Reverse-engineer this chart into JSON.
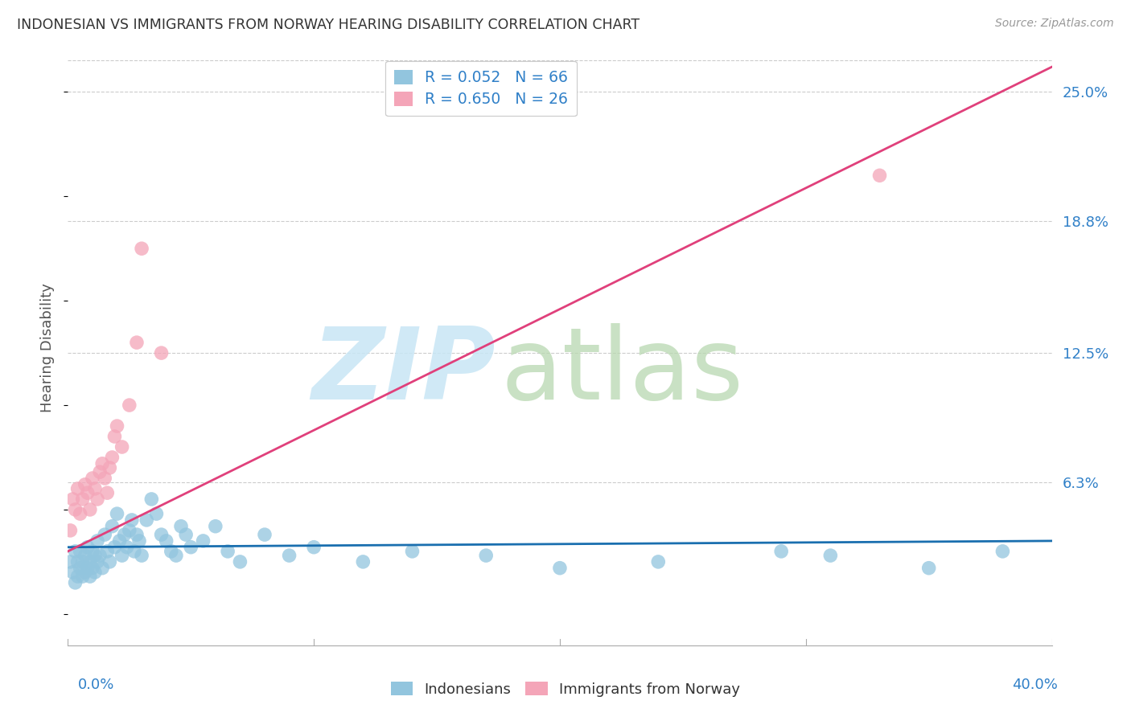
{
  "title": "INDONESIAN VS IMMIGRANTS FROM NORWAY HEARING DISABILITY CORRELATION CHART",
  "source": "Source: ZipAtlas.com",
  "ylabel": "Hearing Disability",
  "ytick_values": [
    0.063,
    0.125,
    0.188,
    0.25
  ],
  "ytick_labels": [
    "6.3%",
    "12.5%",
    "18.8%",
    "25.0%"
  ],
  "xmin": 0.0,
  "xmax": 0.4,
  "ymin": -0.015,
  "ymax": 0.27,
  "legend1_label": "R = 0.052   N = 66",
  "legend2_label": "R = 0.650   N = 26",
  "legend_bottom_label1": "Indonesians",
  "legend_bottom_label2": "Immigrants from Norway",
  "indonesian_color": "#92c5de",
  "norway_color": "#f4a5b8",
  "indonesian_line_color": "#1a6faf",
  "norway_line_color": "#e0407b",
  "indonesian_scatter_x": [
    0.001,
    0.002,
    0.003,
    0.003,
    0.004,
    0.004,
    0.005,
    0.005,
    0.006,
    0.006,
    0.007,
    0.007,
    0.008,
    0.008,
    0.009,
    0.009,
    0.01,
    0.01,
    0.011,
    0.011,
    0.012,
    0.012,
    0.013,
    0.014,
    0.015,
    0.016,
    0.017,
    0.018,
    0.019,
    0.02,
    0.021,
    0.022,
    0.023,
    0.024,
    0.025,
    0.026,
    0.027,
    0.028,
    0.029,
    0.03,
    0.032,
    0.034,
    0.036,
    0.038,
    0.04,
    0.042,
    0.044,
    0.046,
    0.048,
    0.05,
    0.055,
    0.06,
    0.065,
    0.07,
    0.08,
    0.09,
    0.1,
    0.12,
    0.14,
    0.17,
    0.2,
    0.24,
    0.29,
    0.31,
    0.35,
    0.38
  ],
  "indonesian_scatter_y": [
    0.025,
    0.02,
    0.015,
    0.03,
    0.018,
    0.025,
    0.022,
    0.03,
    0.018,
    0.025,
    0.02,
    0.028,
    0.022,
    0.032,
    0.025,
    0.018,
    0.03,
    0.022,
    0.028,
    0.02,
    0.025,
    0.035,
    0.028,
    0.022,
    0.038,
    0.03,
    0.025,
    0.042,
    0.032,
    0.048,
    0.035,
    0.028,
    0.038,
    0.032,
    0.04,
    0.045,
    0.03,
    0.038,
    0.035,
    0.028,
    0.045,
    0.055,
    0.048,
    0.038,
    0.035,
    0.03,
    0.028,
    0.042,
    0.038,
    0.032,
    0.035,
    0.042,
    0.03,
    0.025,
    0.038,
    0.028,
    0.032,
    0.025,
    0.03,
    0.028,
    0.022,
    0.025,
    0.03,
    0.028,
    0.022,
    0.03
  ],
  "norway_scatter_x": [
    0.001,
    0.002,
    0.003,
    0.004,
    0.005,
    0.006,
    0.007,
    0.008,
    0.009,
    0.01,
    0.011,
    0.012,
    0.013,
    0.014,
    0.015,
    0.016,
    0.017,
    0.018,
    0.019,
    0.02,
    0.022,
    0.025,
    0.028,
    0.03,
    0.33,
    0.038
  ],
  "norway_scatter_y": [
    0.04,
    0.055,
    0.05,
    0.06,
    0.048,
    0.055,
    0.062,
    0.058,
    0.05,
    0.065,
    0.06,
    0.055,
    0.068,
    0.072,
    0.065,
    0.058,
    0.07,
    0.075,
    0.085,
    0.09,
    0.08,
    0.1,
    0.13,
    0.175,
    0.21,
    0.125
  ],
  "norway_line_x0": 0.0,
  "norway_line_y0": 0.03,
  "norway_line_x1": 0.4,
  "norway_line_y1": 0.262,
  "indo_line_x0": 0.0,
  "indo_line_y0": 0.032,
  "indo_line_x1": 0.4,
  "indo_line_y1": 0.035
}
